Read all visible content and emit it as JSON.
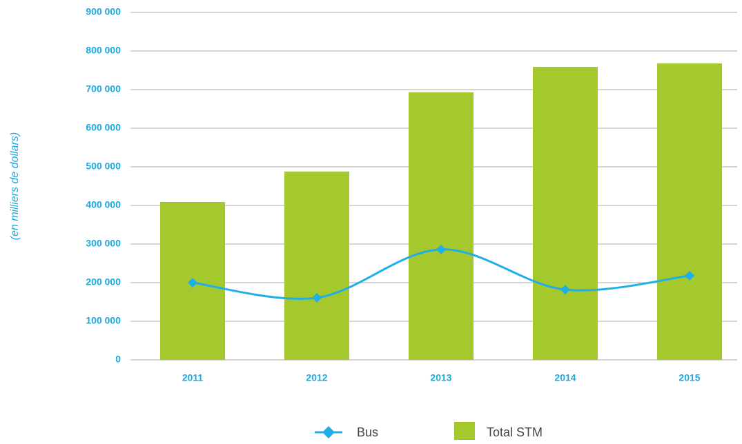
{
  "chart_data": {
    "type": "bar_line",
    "y_label": "(en milliers de dollars)",
    "categories": [
      "2011",
      "2012",
      "2013",
      "2014",
      "2015"
    ],
    "series": [
      {
        "name": "Total STM",
        "type": "bar",
        "color": "#a5c82d",
        "values": [
          409000,
          488000,
          693000,
          759000,
          768000
        ]
      },
      {
        "name": "Bus",
        "type": "line",
        "color": "#1eaee8",
        "values": [
          200000,
          161000,
          286000,
          182000,
          218000
        ]
      }
    ],
    "ylim": [
      0,
      900000
    ],
    "yticks": [
      0,
      {
        "value": 100000,
        "label": "100 000"
      },
      {
        "value": 200000,
        "label": "200 000"
      },
      {
        "value": 300000,
        "label": "300 000"
      },
      {
        "value": 400000,
        "label": "400 000"
      },
      {
        "value": 500000,
        "label": "500 000"
      },
      {
        "value": 600000,
        "label": "600 000"
      },
      {
        "value": 700000,
        "label": "700 000"
      },
      {
        "value": 800000,
        "label": "800 000"
      },
      {
        "value": 900000,
        "label": "900 000"
      }
    ],
    "grid": true,
    "legend": "bottom"
  }
}
